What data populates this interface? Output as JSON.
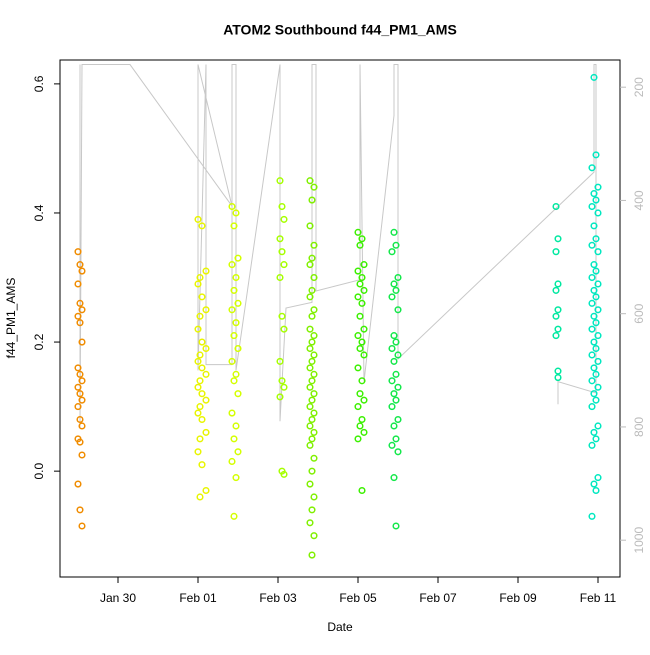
{
  "chart_data": {
    "type": "scatter",
    "title": "ATOM2 Southbound f44_PM1_AMS",
    "xlabel": "Date",
    "ylabel": "f44_PM1_AMS",
    "xlim": [
      28.55,
      42.55
    ],
    "xticks": [
      {
        "value": 30,
        "label": "Jan 30"
      },
      {
        "value": 32,
        "label": "Feb 01"
      },
      {
        "value": 34,
        "label": "Feb 03"
      },
      {
        "value": 36,
        "label": "Feb 05"
      },
      {
        "value": 38,
        "label": "Feb 07"
      },
      {
        "value": 40,
        "label": "Feb 09"
      },
      {
        "value": 42,
        "label": "Feb 11"
      }
    ],
    "ylim": [
      -0.164,
      0.637
    ],
    "yticks": [
      {
        "value": 0,
        "label": "0.0"
      },
      0.2,
      0.4,
      0.6
    ],
    "y2lim": [
      1065,
      152
    ],
    "y2ticks": [
      200,
      400,
      600,
      800,
      1000
    ],
    "series": [
      {
        "type": "line",
        "axis": "y2",
        "color": "#c8c8c8",
        "x": [
          29.05,
          29.05,
          29.1,
          30.3,
          32.85,
          32.0,
          32.0,
          32.2,
          32.2,
          32.85,
          32.85,
          32.95,
          32.95,
          34.05,
          34.05,
          34.2,
          34.85,
          34.85,
          34.95,
          34.95,
          36.05,
          36.05,
          36.15,
          36.9,
          36.9,
          37.0,
          37.0,
          41.9,
          41.9,
          41.95,
          41.95,
          41.0,
          41.0
        ],
        "values": [
          160,
          800,
          160,
          160,
          410,
          160,
          700,
          160,
          690,
          690,
          160,
          160,
          700,
          160,
          790,
          590,
          580,
          160,
          160,
          560,
          540,
          160,
          720,
          250,
          160,
          160,
          680,
          350,
          160,
          160,
          740,
          720,
          760
        ]
      },
      {
        "color": "#f08c00",
        "x": [
          29.0,
          29.05,
          29.1,
          29.0,
          29.05,
          29.1,
          29.0,
          29.05,
          29.1,
          29.0,
          29.05,
          29.1,
          29.0,
          29.05,
          29.1,
          29.0,
          29.05,
          29.1,
          29.0,
          29.05,
          29.1,
          29.0,
          29.05,
          29.1
        ],
        "values": [
          0.34,
          0.32,
          0.31,
          0.29,
          0.26,
          0.25,
          0.24,
          0.23,
          0.2,
          0.16,
          0.15,
          0.14,
          0.13,
          0.12,
          0.11,
          0.1,
          0.08,
          0.07,
          0.05,
          0.045,
          0.025,
          -0.02,
          -0.06,
          -0.085
        ]
      },
      {
        "color": "#e8f500",
        "x": [
          32.0,
          32.1,
          32.2,
          32.05,
          32.0,
          32.1,
          32.2,
          32.05,
          32.0,
          32.1,
          32.2,
          32.05,
          32.0,
          32.1,
          32.2,
          32.05,
          32.0,
          32.1,
          32.2,
          32.05,
          32.0,
          32.1,
          32.2,
          32.05,
          32.0,
          32.1,
          32.2,
          32.05
        ],
        "values": [
          0.39,
          0.38,
          0.31,
          0.3,
          0.29,
          0.27,
          0.25,
          0.24,
          0.22,
          0.2,
          0.19,
          0.18,
          0.17,
          0.16,
          0.15,
          0.14,
          0.13,
          0.12,
          0.11,
          0.1,
          0.09,
          0.08,
          0.06,
          0.05,
          0.03,
          0.01,
          -0.03,
          -0.04
        ]
      },
      {
        "color": "#d4ff00",
        "x": [
          32.85,
          32.95,
          32.9,
          33.0,
          32.85,
          32.95,
          32.9,
          33.0,
          32.85,
          32.95,
          32.9,
          33.0,
          32.85,
          32.95,
          32.9,
          33.0,
          32.85,
          32.95,
          32.9,
          33.0,
          32.85,
          32.95,
          32.9
        ],
        "values": [
          0.41,
          0.4,
          0.38,
          0.33,
          0.32,
          0.3,
          0.28,
          0.26,
          0.25,
          0.23,
          0.21,
          0.19,
          0.17,
          0.15,
          0.14,
          0.12,
          0.09,
          0.07,
          0.05,
          0.03,
          0.015,
          -0.01,
          -0.07
        ]
      },
      {
        "color": "#a6ff00",
        "x": [
          34.05,
          34.1,
          34.15,
          34.05,
          34.1,
          34.15,
          34.05,
          34.1,
          34.15,
          34.05,
          34.1,
          34.15,
          34.05,
          34.1,
          34.15
        ],
        "values": [
          0.45,
          0.41,
          0.39,
          0.36,
          0.34,
          0.32,
          0.3,
          0.24,
          0.22,
          0.17,
          0.14,
          0.13,
          0.115,
          0.0,
          -0.005
        ]
      },
      {
        "color": "#80f000",
        "x": [
          34.8,
          34.9,
          34.85,
          34.8,
          34.9,
          34.85,
          34.8,
          34.9,
          34.85,
          34.8,
          34.9,
          34.85,
          34.8,
          34.9,
          34.85,
          34.8,
          34.9,
          34.85,
          34.8,
          34.9,
          34.85,
          34.8,
          34.9,
          34.85,
          34.8,
          34.9,
          34.85,
          34.8,
          34.9,
          34.85,
          34.8,
          34.9,
          34.85,
          34.8,
          34.9,
          34.85,
          34.8,
          34.9,
          34.85
        ],
        "values": [
          0.45,
          0.44,
          0.42,
          0.38,
          0.35,
          0.33,
          0.32,
          0.3,
          0.28,
          0.27,
          0.25,
          0.24,
          0.22,
          0.21,
          0.2,
          0.19,
          0.18,
          0.17,
          0.16,
          0.15,
          0.14,
          0.13,
          0.12,
          0.11,
          0.1,
          0.09,
          0.08,
          0.07,
          0.06,
          0.05,
          0.04,
          0.02,
          0.0,
          -0.02,
          -0.04,
          -0.06,
          -0.08,
          -0.1,
          -0.13
        ]
      },
      {
        "color": "#3cf000",
        "x": [
          36.0,
          36.1,
          36.05,
          36.15,
          36.0,
          36.1,
          36.05,
          36.15,
          36.0,
          36.1,
          36.05,
          36.15,
          36.0,
          36.1,
          36.05,
          36.15,
          36.0,
          36.1,
          36.05,
          36.15,
          36.0,
          36.1,
          36.05,
          36.15,
          36.0,
          36.1
        ],
        "values": [
          0.37,
          0.36,
          0.35,
          0.32,
          0.31,
          0.3,
          0.29,
          0.28,
          0.27,
          0.26,
          0.24,
          0.22,
          0.21,
          0.2,
          0.19,
          0.18,
          0.16,
          0.14,
          0.12,
          0.11,
          0.1,
          0.08,
          0.07,
          0.06,
          0.05,
          -0.03
        ]
      },
      {
        "color": "#14e84a",
        "x": [
          36.9,
          36.95,
          36.85,
          37.0,
          36.9,
          36.95,
          36.85,
          37.0,
          36.9,
          36.95,
          36.85,
          37.0,
          36.9,
          36.95,
          36.85,
          37.0,
          36.9,
          36.95,
          36.85,
          37.0,
          36.9,
          36.95,
          36.85,
          37.0,
          36.9,
          36.95
        ],
        "values": [
          0.37,
          0.35,
          0.34,
          0.3,
          0.29,
          0.28,
          0.27,
          0.25,
          0.21,
          0.2,
          0.19,
          0.18,
          0.17,
          0.15,
          0.14,
          0.13,
          0.12,
          0.11,
          0.1,
          0.08,
          0.07,
          0.05,
          0.04,
          0.03,
          -0.01,
          -0.085
        ]
      },
      {
        "color": "#00e8a0",
        "x": [
          40.95,
          41.0,
          40.95,
          41.0,
          40.95,
          41.0,
          40.95,
          41.0,
          40.95,
          41.0,
          41.0
        ],
        "values": [
          0.41,
          0.36,
          0.34,
          0.29,
          0.28,
          0.25,
          0.24,
          0.22,
          0.21,
          0.155,
          0.145
        ]
      },
      {
        "color": "#00e8c0",
        "x": [
          41.9,
          41.95,
          41.85,
          42.0,
          41.9,
          41.95,
          41.85,
          42.0,
          41.9,
          41.95,
          41.85,
          42.0,
          41.9,
          41.95,
          41.85,
          42.0,
          41.9,
          41.95,
          41.85,
          42.0,
          41.9,
          41.95,
          41.85,
          42.0,
          41.9,
          41.95,
          41.85,
          42.0,
          41.9,
          41.95,
          41.85,
          42.0,
          41.9,
          41.95,
          41.85,
          42.0,
          41.9,
          41.95,
          41.85,
          42.0,
          41.9,
          41.95,
          41.85
        ],
        "values": [
          0.61,
          0.49,
          0.47,
          0.44,
          0.43,
          0.42,
          0.41,
          0.4,
          0.38,
          0.36,
          0.35,
          0.34,
          0.32,
          0.31,
          0.3,
          0.29,
          0.28,
          0.27,
          0.26,
          0.25,
          0.24,
          0.23,
          0.22,
          0.21,
          0.2,
          0.19,
          0.18,
          0.17,
          0.16,
          0.15,
          0.14,
          0.13,
          0.12,
          0.11,
          0.1,
          0.07,
          0.06,
          0.05,
          0.04,
          -0.01,
          -0.02,
          -0.03,
          -0.07
        ]
      }
    ]
  }
}
